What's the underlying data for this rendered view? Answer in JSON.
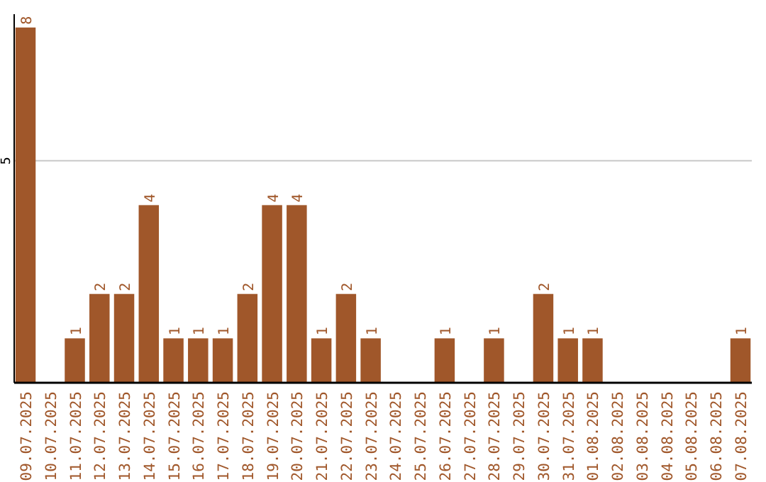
{
  "chart_data": {
    "type": "bar",
    "categories": [
      "09.07.2025",
      "10.07.2025",
      "11.07.2025",
      "12.07.2025",
      "13.07.2025",
      "14.07.2025",
      "15.07.2025",
      "16.07.2025",
      "17.07.2025",
      "18.07.2025",
      "19.07.2025",
      "20.07.2025",
      "21.07.2025",
      "22.07.2025",
      "23.07.2025",
      "24.07.2025",
      "25.07.2025",
      "26.07.2025",
      "27.07.2025",
      "28.07.2025",
      "29.07.2025",
      "30.07.2025",
      "31.07.2025",
      "01.08.2025",
      "02.08.2025",
      "03.08.2025",
      "04.08.2025",
      "05.08.2025",
      "06.08.2025",
      "07.08.2025"
    ],
    "values": [
      8,
      0,
      1,
      2,
      2,
      4,
      1,
      1,
      1,
      2,
      4,
      4,
      1,
      2,
      1,
      0,
      0,
      1,
      0,
      1,
      0,
      2,
      1,
      1,
      0,
      0,
      0,
      0,
      0,
      1
    ],
    "value_labels": [
      "8",
      null,
      "1",
      "2",
      "2",
      "4",
      "1",
      "1",
      "1",
      "2",
      "4",
      "4",
      "1",
      "2",
      "1",
      null,
      null,
      "1",
      null,
      "1",
      null,
      "2",
      "1",
      "1",
      null,
      null,
      null,
      null,
      null,
      "1"
    ],
    "color": "#a0572a",
    "ylim": [
      0,
      8.3
    ],
    "yticks": [
      5
    ],
    "grid": "y"
  }
}
